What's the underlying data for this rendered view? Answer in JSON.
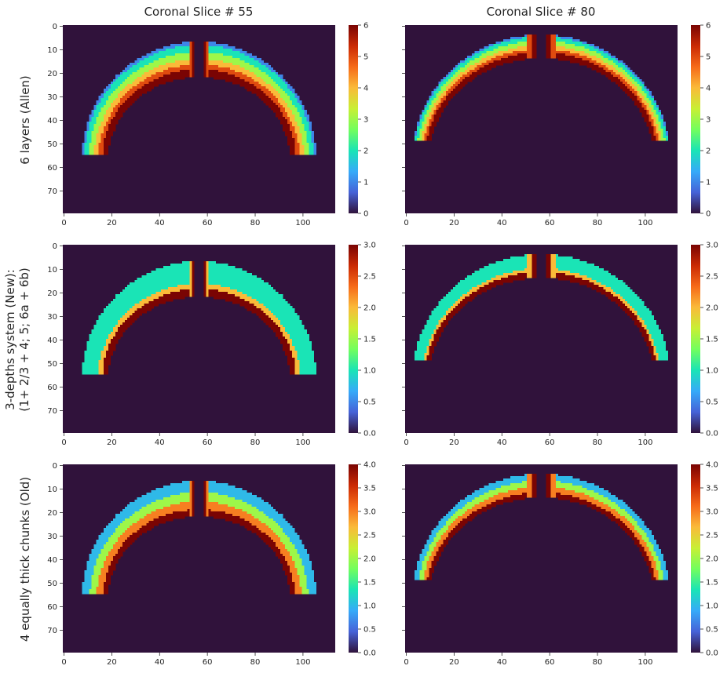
{
  "col_titles": [
    "Coronal Slice # 55",
    "Coronal Slice # 80"
  ],
  "row_labels": [
    [
      "6 layers (Allen)"
    ],
    [
      "3-depths system (New):",
      "(1+ 2/3 + 4; 5; 6a + 6b)"
    ],
    [
      "4 equally thick chunks (Old)"
    ]
  ],
  "colormap": [
    "#30123b",
    "#4662d7",
    "#36aaf9",
    "#1ae4b6",
    "#72fe5e",
    "#c8ef34",
    "#faba39",
    "#f66b19",
    "#ca2a04",
    "#7a0403"
  ],
  "chart_data": [
    {
      "type": "heatmap",
      "title": "Coronal Slice # 55",
      "ylabel": "6 layers (Allen)",
      "slice": 55,
      "shape": [
        80,
        114
      ],
      "xticks": [
        0,
        20,
        40,
        60,
        80,
        100
      ],
      "yticks": [
        0,
        10,
        20,
        30,
        40,
        50,
        60,
        70
      ],
      "cbar_range": [
        0,
        6
      ],
      "cbar_ticks": [
        "0",
        "1",
        "2",
        "3",
        "4",
        "5",
        "6"
      ],
      "scheme": "allen"
    },
    {
      "type": "heatmap",
      "title": "Coronal Slice # 80",
      "ylabel": "6 layers (Allen)",
      "slice": 80,
      "shape": [
        80,
        114
      ],
      "xticks": [
        0,
        20,
        40,
        60,
        80,
        100
      ],
      "yticks": [],
      "cbar_range": [
        0,
        6
      ],
      "cbar_ticks": [
        "0",
        "1",
        "2",
        "3",
        "4",
        "5",
        "6"
      ],
      "scheme": "allen"
    },
    {
      "type": "heatmap",
      "title": "Coronal Slice # 55",
      "ylabel": "3-depths system (New): (1+ 2/3 + 4; 5; 6a + 6b)",
      "slice": 55,
      "shape": [
        80,
        114
      ],
      "xticks": [
        0,
        20,
        40,
        60,
        80,
        100
      ],
      "yticks": [
        0,
        10,
        20,
        30,
        40,
        50,
        60,
        70
      ],
      "cbar_range": [
        0,
        3
      ],
      "cbar_ticks": [
        "0.0",
        "0.5",
        "1.0",
        "1.5",
        "2.0",
        "2.5",
        "3.0"
      ],
      "scheme": "three"
    },
    {
      "type": "heatmap",
      "title": "Coronal Slice # 80",
      "ylabel": "3-depths system (New): (1+ 2/3 + 4; 5; 6a + 6b)",
      "slice": 80,
      "shape": [
        80,
        114
      ],
      "xticks": [
        0,
        20,
        40,
        60,
        80,
        100
      ],
      "yticks": [],
      "cbar_range": [
        0,
        3
      ],
      "cbar_ticks": [
        "0.0",
        "0.5",
        "1.0",
        "1.5",
        "2.0",
        "2.5",
        "3.0"
      ],
      "scheme": "three"
    },
    {
      "type": "heatmap",
      "title": "Coronal Slice # 55",
      "ylabel": "4 equally thick chunks (Old)",
      "slice": 55,
      "shape": [
        80,
        114
      ],
      "xticks": [
        0,
        20,
        40,
        60,
        80,
        100
      ],
      "yticks": [
        0,
        10,
        20,
        30,
        40,
        50,
        60,
        70
      ],
      "cbar_range": [
        0,
        4
      ],
      "cbar_ticks": [
        "0.0",
        "0.5",
        "1.0",
        "1.5",
        "2.0",
        "2.5",
        "3.0",
        "3.5",
        "4.0"
      ],
      "scheme": "four"
    },
    {
      "type": "heatmap",
      "title": "Coronal Slice # 80",
      "ylabel": "4 equally thick chunks (Old)",
      "slice": 80,
      "shape": [
        80,
        114
      ],
      "xticks": [
        0,
        20,
        40,
        60,
        80,
        100
      ],
      "yticks": [],
      "cbar_range": [
        0,
        4
      ],
      "cbar_ticks": [
        "0.0",
        "0.5",
        "1.0",
        "1.5",
        "2.0",
        "2.5",
        "3.0",
        "3.5",
        "4.0"
      ],
      "scheme": "four"
    }
  ]
}
